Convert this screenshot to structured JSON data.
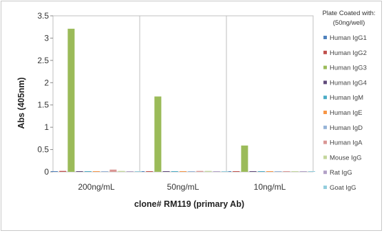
{
  "chart_data": {
    "type": "bar",
    "categories": [
      "200ng/mL",
      "50ng/mL",
      "10ng/mL"
    ],
    "xlabel": "clone# RM119 (primary Ab)",
    "ylabel": "Abs (405nm)",
    "ylim": [
      0,
      3.5
    ],
    "yticks": [
      "0",
      "0.5",
      "1",
      "1.5",
      "2",
      "2.5",
      "3",
      "3.5"
    ],
    "grid": "vertical category separators",
    "legend_position": "right",
    "legend_title": [
      "Plate Coated with:",
      "(50ng/well)"
    ],
    "series": [
      {
        "name": "Human IgG1",
        "color": "#4f81bd",
        "values": [
          0.01,
          0.01,
          0.01
        ]
      },
      {
        "name": "Human IgG2",
        "color": "#c0504d",
        "values": [
          0.02,
          0.01,
          0.01
        ]
      },
      {
        "name": "Human IgG3",
        "color": "#9bbb59",
        "values": [
          3.21,
          1.69,
          0.59
        ]
      },
      {
        "name": "Human IgG4",
        "color": "#604a7b",
        "values": [
          0.01,
          0.01,
          0.01
        ]
      },
      {
        "name": "Human IgM",
        "color": "#4bacc6",
        "values": [
          0.01,
          0.01,
          0.01
        ]
      },
      {
        "name": "Human IgE",
        "color": "#f79646",
        "values": [
          0.01,
          0.01,
          0.01
        ]
      },
      {
        "name": "Human IgD",
        "color": "#95b3d7",
        "values": [
          0.01,
          0.01,
          0.01
        ]
      },
      {
        "name": "Human IgA",
        "color": "#da9694",
        "values": [
          0.05,
          0.02,
          0.01
        ]
      },
      {
        "name": "Mouse IgG",
        "color": "#c3d69b",
        "values": [
          0.02,
          0.02,
          0.01
        ]
      },
      {
        "name": "Rat IgG",
        "color": "#b2a1c7",
        "values": [
          0.01,
          0.01,
          0.01
        ]
      },
      {
        "name": "Goat IgG",
        "color": "#93cddd",
        "values": [
          0.01,
          0.01,
          0.01
        ]
      }
    ]
  }
}
